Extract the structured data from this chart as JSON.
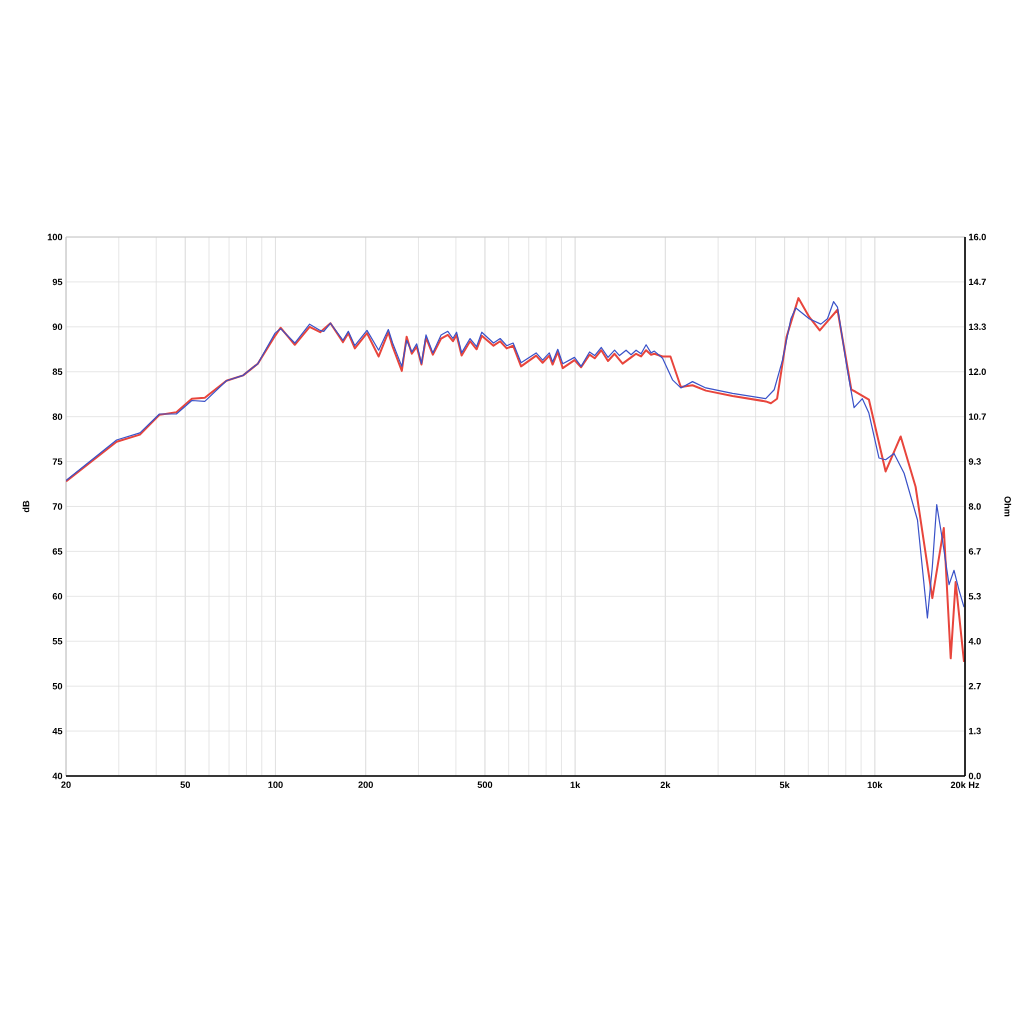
{
  "chart_data": {
    "type": "line",
    "ylabel": "dB",
    "y2label": "Ohm",
    "log": "x",
    "grid": true,
    "xlim": [
      20,
      20000
    ],
    "xticks": [
      20,
      50,
      100,
      200,
      500,
      {
        "value": 1000,
        "label": "1k"
      },
      {
        "value": 2000,
        "label": "2k"
      },
      {
        "value": 5000,
        "label": "5k"
      },
      {
        "value": 10000,
        "label": "10k"
      },
      {
        "value": 20000,
        "label": "20k Hz"
      }
    ],
    "ylim": [
      40,
      100
    ],
    "yticks": [
      40,
      45,
      50,
      55,
      60,
      65,
      70,
      75,
      80,
      85,
      90,
      95,
      100
    ],
    "y2lim": [
      0,
      16
    ],
    "y2ticks": [
      {
        "value": 0,
        "label": "0.0"
      },
      {
        "value": 1.333,
        "label": "1.3"
      },
      {
        "value": 2.667,
        "label": "2.7"
      },
      {
        "value": 4,
        "label": "4.0"
      },
      {
        "value": 5.333,
        "label": "5.3"
      },
      {
        "value": 6.667,
        "label": "6.7"
      },
      {
        "value": 8,
        "label": "8.0"
      },
      {
        "value": 9.333,
        "label": "9.3"
      },
      {
        "value": 10.667,
        "label": "10.7"
      },
      {
        "value": 12,
        "label": "12.0"
      },
      {
        "value": 13.333,
        "label": "13.3"
      },
      {
        "value": 14.667,
        "label": "14.7"
      },
      {
        "value": 16,
        "label": "16.0"
      }
    ],
    "series": [
      {
        "color": "#e8453c",
        "x": [
          20,
          29.5,
          35.3,
          41,
          46.7,
          52.6,
          58.1,
          68.6,
          78,
          87.3,
          99.7,
          104,
          116,
          130,
          141,
          152.6,
          168,
          175,
          184,
          202,
          221,
          238,
          246,
          264,
          274,
          285,
          296,
          307,
          318,
          335,
          357,
          376,
          391,
          402,
          418,
          446,
          469,
          488,
          534,
          562,
          591,
          621,
          660,
          741,
          779,
          820,
          841,
          875,
          909,
          995,
          1047,
          1117,
          1162,
          1223,
          1287,
          1354,
          1440,
          1537,
          1597,
          1660,
          1725,
          1792,
          1838,
          1958,
          2080,
          2253,
          2464,
          2731,
          3351,
          4325,
          4500,
          4720,
          5077,
          5560,
          6041,
          6550,
          6952,
          7507,
          8350,
          8600,
          9554,
          10867,
          12200,
          13680,
          15560,
          16990,
          17920,
          18610,
          19850
        ],
        "values": [
          72.8,
          77.2,
          78.0,
          80.2,
          80.5,
          82.0,
          82.1,
          84.0,
          84.6,
          85.9,
          89.0,
          89.9,
          88.0,
          90.0,
          89.4,
          90.4,
          88.3,
          89.3,
          87.6,
          89.3,
          86.7,
          89.4,
          87.8,
          85.1,
          88.9,
          87.0,
          87.8,
          85.8,
          88.8,
          86.9,
          88.7,
          89.1,
          88.4,
          89.1,
          86.8,
          88.4,
          87.5,
          89.0,
          87.9,
          88.4,
          87.6,
          87.9,
          85.6,
          86.8,
          86.0,
          86.8,
          85.8,
          87.2,
          85.4,
          86.3,
          85.5,
          86.9,
          86.5,
          87.4,
          86.2,
          87.0,
          85.9,
          86.6,
          87.0,
          86.7,
          87.4,
          86.9,
          87.0,
          86.7,
          86.7,
          83.3,
          83.5,
          82.9,
          82.3,
          81.7,
          81.5,
          82.0,
          88.9,
          93.2,
          91.1,
          89.6,
          90.6,
          91.9,
          83.0,
          82.8,
          81.9,
          73.9,
          77.8,
          72.2,
          59.8,
          67.6,
          53.1,
          61.6,
          52.7
        ]
      },
      {
        "color": "#3a52c8",
        "x": [
          20,
          29.5,
          35.3,
          41,
          46.7,
          52.6,
          58.1,
          68.6,
          78,
          87.3,
          99.7,
          104,
          116,
          130,
          141,
          145,
          152.6,
          168,
          175,
          184,
          202,
          221,
          238,
          246,
          264,
          274,
          285,
          296,
          307,
          318,
          335,
          357,
          376,
          391,
          402,
          418,
          446,
          469,
          488,
          534,
          562,
          591,
          621,
          660,
          741,
          779,
          820,
          841,
          875,
          909,
          995,
          1047,
          1117,
          1162,
          1223,
          1287,
          1354,
          1406,
          1479,
          1537,
          1597,
          1660,
          1725,
          1792,
          1838,
          1958,
          2113,
          2253,
          2464,
          2731,
          3351,
          4325,
          4615,
          4920,
          5247,
          5451,
          6041,
          6606,
          6952,
          7283,
          7507,
          8099,
          8527,
          9087,
          9554,
          10322,
          10867,
          11590,
          12524,
          13880,
          14980,
          15560,
          16090,
          16810,
          17690,
          18380,
          19100,
          19850
        ],
        "values": [
          72.9,
          77.4,
          78.2,
          80.3,
          80.3,
          81.8,
          81.7,
          84.0,
          84.6,
          85.9,
          89.3,
          89.8,
          88.2,
          90.3,
          89.6,
          89.5,
          90.4,
          88.5,
          89.5,
          87.9,
          89.6,
          87.4,
          89.7,
          88.2,
          85.6,
          88.5,
          87.2,
          88.1,
          85.9,
          89.1,
          87.1,
          89.1,
          89.5,
          88.7,
          89.4,
          87.1,
          88.7,
          87.8,
          89.4,
          88.2,
          88.7,
          87.9,
          88.2,
          86.0,
          87.1,
          86.3,
          87.1,
          86.1,
          87.5,
          85.9,
          86.6,
          85.6,
          87.2,
          86.8,
          87.7,
          86.6,
          87.4,
          86.8,
          87.4,
          86.9,
          87.4,
          87.0,
          88.0,
          87.1,
          87.3,
          86.5,
          84.1,
          83.2,
          83.9,
          83.2,
          82.6,
          82.0,
          83.0,
          86.3,
          90.9,
          92.1,
          90.9,
          90.3,
          90.9,
          92.8,
          92.2,
          85.2,
          81.0,
          82.0,
          80.4,
          75.4,
          75.2,
          75.9,
          73.7,
          68.5,
          57.6,
          63.3,
          70.2,
          66.3,
          61.3,
          62.9,
          60.7,
          58.8
        ]
      }
    ]
  }
}
